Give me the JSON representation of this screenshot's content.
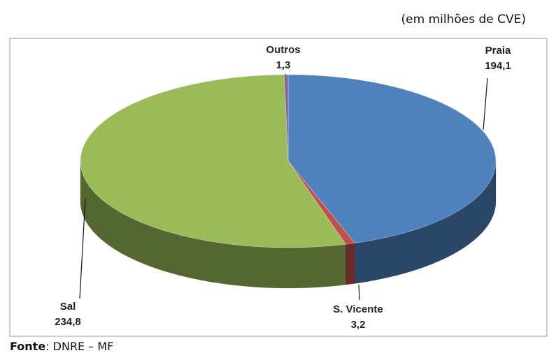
{
  "chart_data": {
    "type": "pie",
    "subtitle": "(em milhões de CVE)",
    "categories": [
      "Praia",
      "S. Vicente",
      "Sal",
      "Outros"
    ],
    "values": [
      194.1,
      3.2,
      234.8,
      1.3
    ],
    "value_labels": [
      "194,1",
      "3,2",
      "234,8",
      "1,3"
    ],
    "colors": [
      "#4f81bd",
      "#c0504d",
      "#9bbb59",
      "#8064a2"
    ],
    "source_label": "Fonte",
    "source": ": DNRE – MF"
  }
}
